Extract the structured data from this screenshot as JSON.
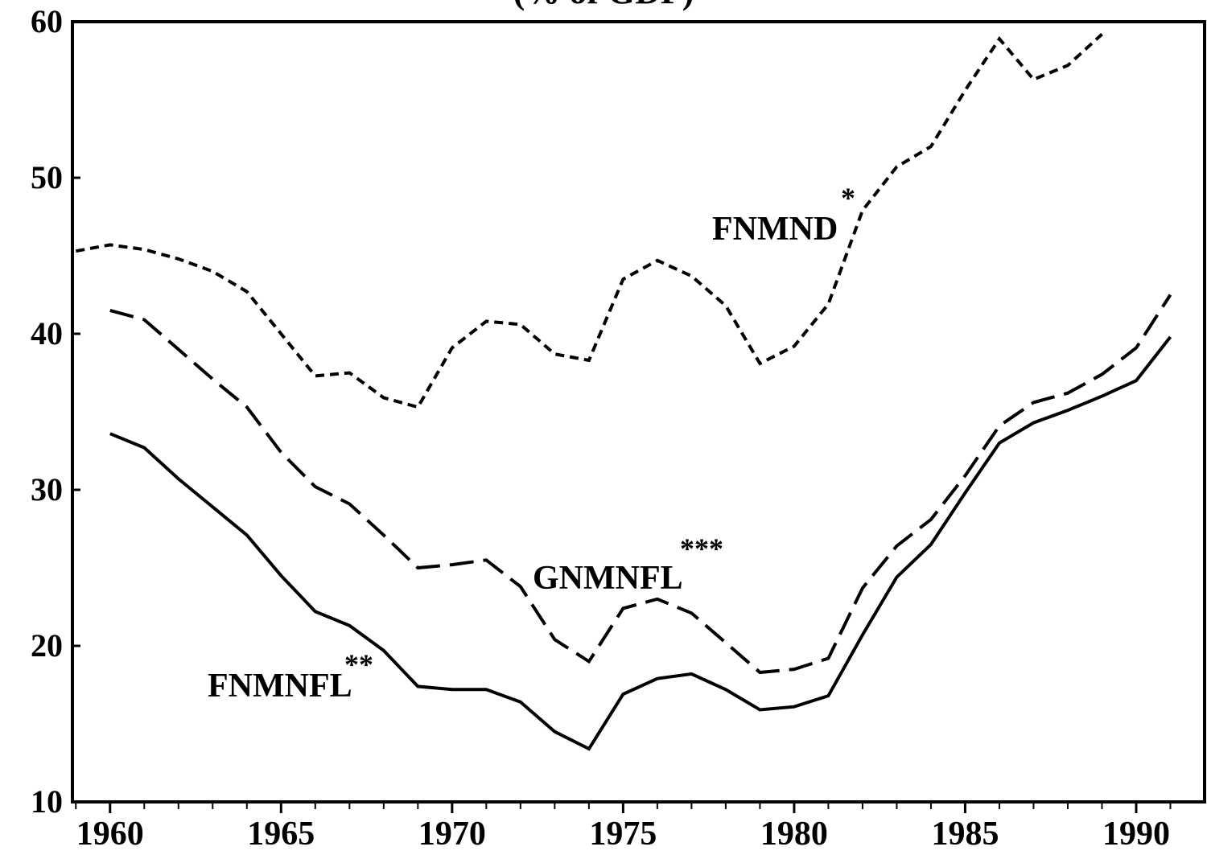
{
  "chart_data": {
    "type": "line",
    "title": "(% of GDP)",
    "x": [
      1959,
      1960,
      1961,
      1962,
      1963,
      1964,
      1965,
      1966,
      1967,
      1968,
      1969,
      1970,
      1971,
      1972,
      1973,
      1974,
      1975,
      1976,
      1977,
      1978,
      1979,
      1980,
      1981,
      1982,
      1983,
      1984,
      1985,
      1986,
      1987,
      1988,
      1989,
      1990,
      1991
    ],
    "series": [
      {
        "name": "FNMND",
        "color": "#000000",
        "dash": "short",
        "values": [
          45.3,
          45.7,
          45.4,
          44.8,
          44.0,
          42.7,
          40.0,
          37.3,
          37.5,
          35.9,
          35.3,
          39.1,
          40.8,
          40.6,
          38.7,
          38.3,
          43.5,
          44.7,
          43.7,
          41.8,
          38.1,
          39.2,
          41.9,
          47.9,
          50.7,
          52.0,
          55.6,
          58.9,
          56.3,
          57.2,
          59.2,
          null,
          null
        ]
      },
      {
        "name": "GNMNFL",
        "color": "#000000",
        "dash": "long",
        "values": [
          null,
          41.5,
          40.9,
          39.0,
          37.1,
          35.3,
          32.4,
          30.2,
          29.1,
          27.1,
          25.0,
          25.2,
          25.5,
          23.8,
          20.4,
          19.0,
          22.4,
          23.0,
          22.1,
          20.2,
          18.3,
          18.5,
          19.2,
          23.7,
          26.4,
          28.1,
          30.9,
          34.1,
          35.6,
          36.2,
          37.4,
          39.1,
          42.5
        ]
      },
      {
        "name": "FNMNFL",
        "color": "#000000",
        "dash": "solid",
        "values": [
          null,
          33.6,
          32.7,
          30.7,
          28.9,
          27.1,
          24.5,
          22.2,
          21.3,
          19.7,
          17.4,
          17.2,
          17.2,
          16.4,
          14.5,
          13.4,
          16.9,
          17.9,
          18.2,
          17.2,
          15.9,
          16.1,
          16.8,
          20.7,
          24.4,
          26.5,
          29.8,
          33.0,
          34.3,
          35.1,
          36.0,
          37.0,
          39.8
        ]
      }
    ],
    "annotations": [
      {
        "text": "FNMND",
        "sup": "*"
      },
      {
        "text": "GNMNFL",
        "sup": "***"
      },
      {
        "text": "FNMNFL",
        "sup": "**"
      }
    ],
    "xlim": [
      1958.9,
      1992
    ],
    "ylim": [
      10,
      60
    ],
    "xticks": [
      1960,
      1965,
      1970,
      1975,
      1980,
      1985,
      1990
    ],
    "yticks": [
      10,
      20,
      30,
      40,
      50,
      60
    ],
    "grid": false
  }
}
